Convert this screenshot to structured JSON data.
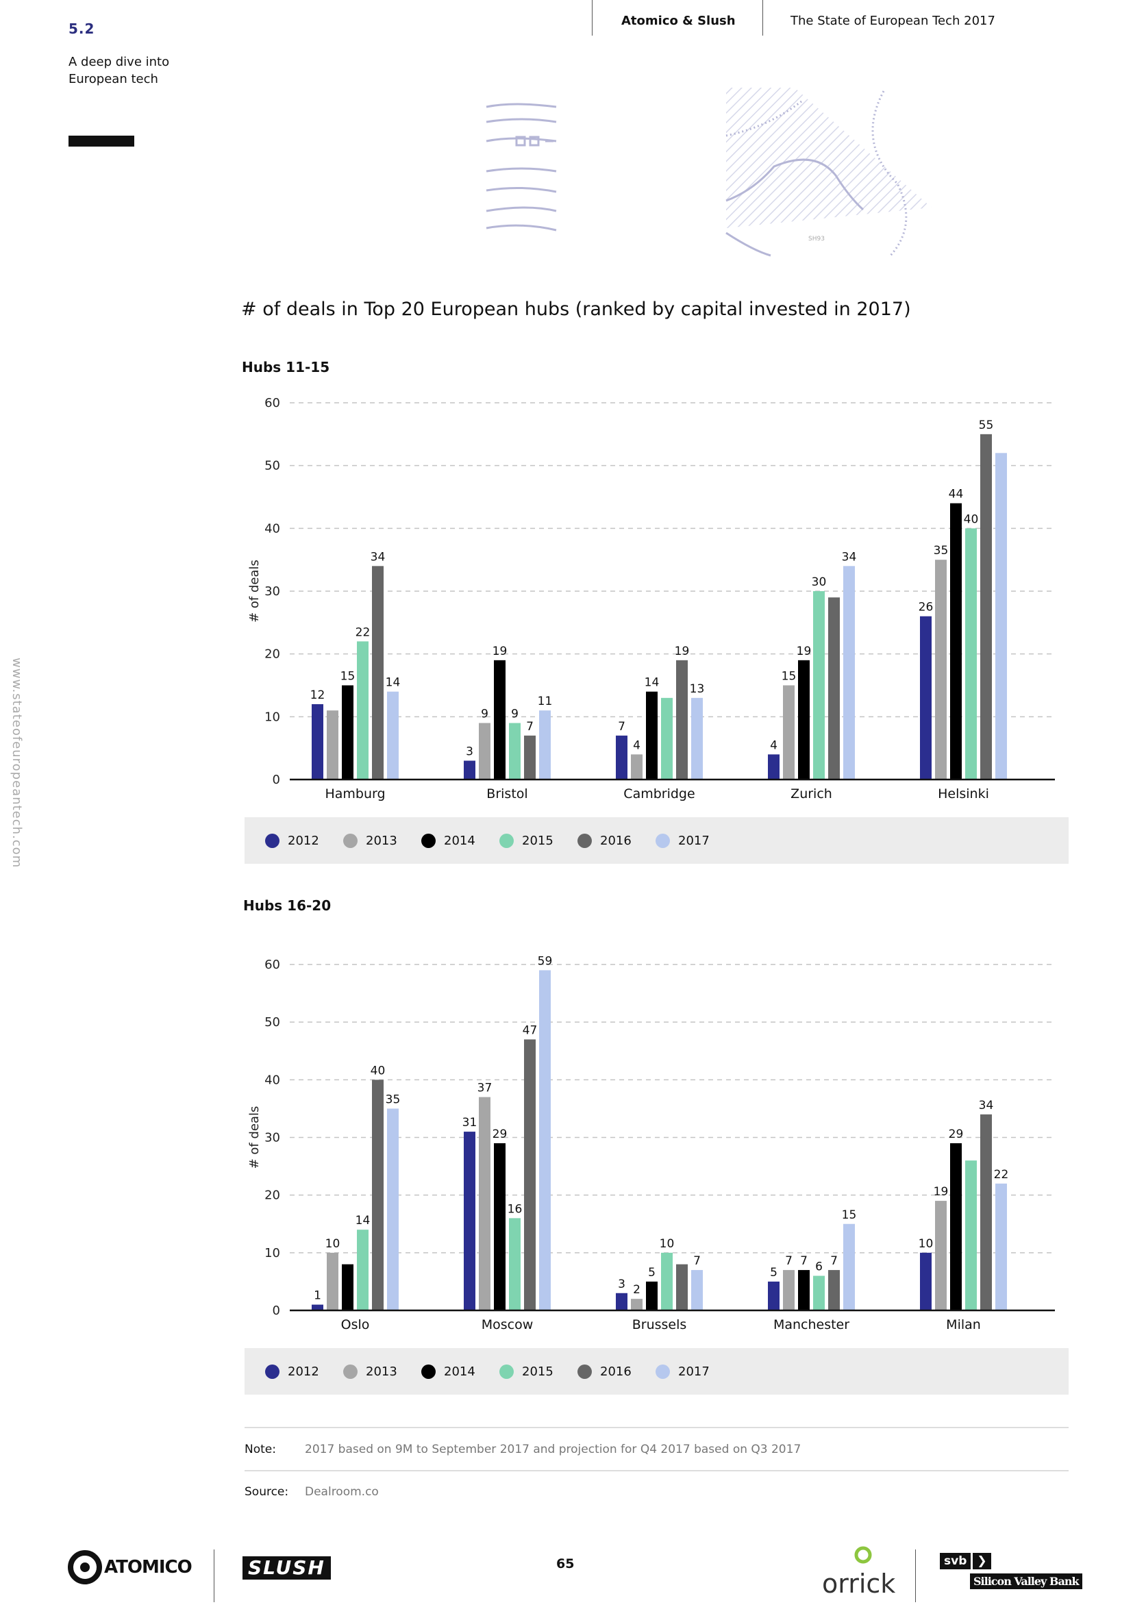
{
  "header": {
    "section_number": "5.2",
    "section_title": "A deep dive into European tech",
    "publisher": "Atomico & Slush",
    "report_title": "The State of European Tech 2017"
  },
  "side_url": "www.stateofeuropeantech.com",
  "decoration": {
    "label": "SH93"
  },
  "main_title": "# of deals in Top 20 European hubs (ranked by capital invested in 2017)",
  "colors": {
    "2012": "#2b2e8f",
    "2013": "#a6a6a6",
    "2014": "#000000",
    "2015": "#7fd4b0",
    "2016": "#666666",
    "2017": "#b6c8ee"
  },
  "chart_data": [
    {
      "type": "bar",
      "title": "Hubs 11-15",
      "ylabel": "# of deals",
      "ylim": [
        0,
        60
      ],
      "yticks": [
        0,
        10,
        20,
        30,
        40,
        50,
        60
      ],
      "grid": true,
      "legend_position": "bottom",
      "categories": [
        "Hamburg",
        "Bristol",
        "Cambridge",
        "Zurich",
        "Helsinki"
      ],
      "series": [
        {
          "name": "2012",
          "values": [
            12,
            3,
            7,
            4,
            26
          ],
          "labels": [
            "12",
            "3",
            "7",
            "4",
            "26"
          ]
        },
        {
          "name": "2013",
          "values": [
            11,
            9,
            4,
            15,
            35
          ],
          "labels": [
            "",
            "9",
            "4",
            "15",
            "35"
          ]
        },
        {
          "name": "2014",
          "values": [
            15,
            19,
            14,
            19,
            44
          ],
          "labels": [
            "15",
            "19",
            "14",
            "19",
            "44"
          ]
        },
        {
          "name": "2015",
          "values": [
            22,
            9,
            13,
            30,
            40
          ],
          "labels": [
            "22",
            "9",
            "",
            "30",
            "40"
          ]
        },
        {
          "name": "2016",
          "values": [
            34,
            7,
            19,
            29,
            55
          ],
          "labels": [
            "34",
            "7",
            "19",
            "",
            "55"
          ]
        },
        {
          "name": "2017",
          "values": [
            14,
            11,
            13,
            34,
            52
          ],
          "labels": [
            "14",
            "11",
            "13",
            "34",
            ""
          ]
        }
      ]
    },
    {
      "type": "bar",
      "title": "Hubs 16-20",
      "ylabel": "# of deals",
      "ylim": [
        0,
        60
      ],
      "yticks": [
        0,
        10,
        20,
        30,
        40,
        50,
        60
      ],
      "grid": true,
      "legend_position": "bottom",
      "categories": [
        "Oslo",
        "Moscow",
        "Brussels",
        "Manchester",
        "Milan"
      ],
      "series": [
        {
          "name": "2012",
          "values": [
            1,
            31,
            3,
            5,
            10
          ],
          "labels": [
            "1",
            "31",
            "3",
            "5",
            "10"
          ]
        },
        {
          "name": "2013",
          "values": [
            10,
            37,
            2,
            7,
            19
          ],
          "labels": [
            "10",
            "37",
            "2",
            "7",
            "19"
          ]
        },
        {
          "name": "2014",
          "values": [
            8,
            29,
            5,
            7,
            29
          ],
          "labels": [
            "",
            "29",
            "5",
            "7",
            "29"
          ]
        },
        {
          "name": "2015",
          "values": [
            14,
            16,
            10,
            6,
            26
          ],
          "labels": [
            "14",
            "16",
            "10",
            "6",
            ""
          ]
        },
        {
          "name": "2016",
          "values": [
            40,
            47,
            8,
            7,
            34
          ],
          "labels": [
            "40",
            "47",
            "",
            "7",
            "34"
          ]
        },
        {
          "name": "2017",
          "values": [
            35,
            59,
            7,
            15,
            22
          ],
          "labels": [
            "35",
            "59",
            "7",
            "15",
            "22"
          ]
        }
      ]
    }
  ],
  "note": {
    "label": "Note:",
    "text": "2017 based on 9M to September 2017 and projection for Q4 2017 based on Q3 2017"
  },
  "source": {
    "label": "Source:",
    "text": "Dealroom.co"
  },
  "footer": {
    "page_number": "65",
    "logo_atomico": "ATOMICO",
    "logo_slush": "SLUSH",
    "logo_orrick": "orrick",
    "logo_svb_badge": "svb",
    "logo_svb_name": "Silicon Valley Bank"
  }
}
